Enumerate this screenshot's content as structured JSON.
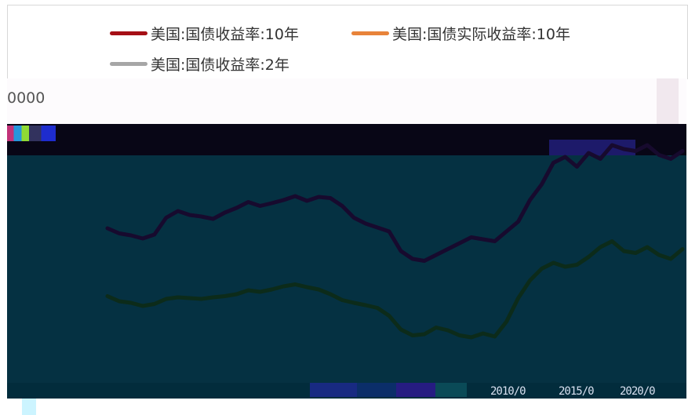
{
  "chart_data": {
    "type": "line",
    "title": "",
    "xlabel": "",
    "ylabel": "",
    "legend_position": "top",
    "y_tick_top": "0000",
    "x_ticks": [
      "2010/0",
      "2015/0",
      "2020/0"
    ],
    "series": [
      {
        "name": "美国:国债收益率:10年",
        "color": "#a50f15",
        "rendered_color": "#170a2e",
        "points": [
          [
            0,
            3.28
          ],
          [
            1,
            3.15
          ],
          [
            2,
            3.1
          ],
          [
            3,
            3.02
          ],
          [
            4,
            3.12
          ],
          [
            5,
            3.55
          ],
          [
            6,
            3.72
          ],
          [
            7,
            3.62
          ],
          [
            8,
            3.58
          ],
          [
            9,
            3.52
          ],
          [
            10,
            3.68
          ],
          [
            11,
            3.8
          ],
          [
            12,
            3.95
          ],
          [
            13,
            3.85
          ],
          [
            14,
            3.92
          ],
          [
            15,
            4.0
          ],
          [
            16,
            4.1
          ],
          [
            17,
            3.98
          ],
          [
            18,
            4.08
          ],
          [
            19,
            4.05
          ],
          [
            20,
            3.85
          ],
          [
            21,
            3.55
          ],
          [
            22,
            3.4
          ],
          [
            23,
            3.3
          ],
          [
            24,
            3.2
          ],
          [
            25,
            2.7
          ],
          [
            26,
            2.5
          ],
          [
            27,
            2.45
          ],
          [
            28,
            2.6
          ],
          [
            29,
            2.75
          ],
          [
            30,
            2.9
          ],
          [
            31,
            3.05
          ],
          [
            32,
            3.0
          ],
          [
            33,
            2.95
          ],
          [
            34,
            3.2
          ],
          [
            35,
            3.45
          ],
          [
            36,
            4.0
          ],
          [
            37,
            4.4
          ],
          [
            38,
            4.95
          ],
          [
            39,
            5.1
          ],
          [
            40,
            4.85
          ],
          [
            41,
            5.2
          ],
          [
            42,
            5.05
          ],
          [
            43,
            5.4
          ],
          [
            44,
            5.3
          ],
          [
            45,
            5.25
          ],
          [
            46,
            5.4
          ],
          [
            47,
            5.15
          ],
          [
            48,
            5.05
          ],
          [
            49,
            5.25
          ]
        ]
      },
      {
        "name": "美国:国债实际收益率:10年",
        "color": "#e8833a",
        "rendered_color": "#0c2b1a",
        "points": [
          [
            0,
            1.55
          ],
          [
            1,
            1.42
          ],
          [
            2,
            1.38
          ],
          [
            3,
            1.3
          ],
          [
            4,
            1.35
          ],
          [
            5,
            1.48
          ],
          [
            6,
            1.52
          ],
          [
            7,
            1.5
          ],
          [
            8,
            1.48
          ],
          [
            9,
            1.52
          ],
          [
            10,
            1.55
          ],
          [
            11,
            1.6
          ],
          [
            12,
            1.7
          ],
          [
            13,
            1.66
          ],
          [
            14,
            1.72
          ],
          [
            15,
            1.8
          ],
          [
            16,
            1.85
          ],
          [
            17,
            1.78
          ],
          [
            18,
            1.72
          ],
          [
            19,
            1.6
          ],
          [
            20,
            1.45
          ],
          [
            21,
            1.38
          ],
          [
            22,
            1.32
          ],
          [
            23,
            1.25
          ],
          [
            24,
            1.05
          ],
          [
            25,
            0.7
          ],
          [
            26,
            0.55
          ],
          [
            27,
            0.58
          ],
          [
            28,
            0.75
          ],
          [
            29,
            0.68
          ],
          [
            30,
            0.55
          ],
          [
            31,
            0.5
          ],
          [
            32,
            0.6
          ],
          [
            33,
            0.52
          ],
          [
            34,
            0.9
          ],
          [
            35,
            1.5
          ],
          [
            36,
            1.95
          ],
          [
            37,
            2.25
          ],
          [
            38,
            2.4
          ],
          [
            39,
            2.3
          ],
          [
            40,
            2.35
          ],
          [
            41,
            2.55
          ],
          [
            42,
            2.8
          ],
          [
            43,
            2.95
          ],
          [
            44,
            2.7
          ],
          [
            45,
            2.65
          ],
          [
            46,
            2.8
          ],
          [
            47,
            2.6
          ],
          [
            48,
            2.5
          ],
          [
            49,
            2.75
          ]
        ]
      },
      {
        "name": "美国:国债收益率:2年",
        "color": "#a6a6a6",
        "rendered_color": "#0c2f40",
        "points": []
      }
    ]
  },
  "plot_background": "#053142"
}
